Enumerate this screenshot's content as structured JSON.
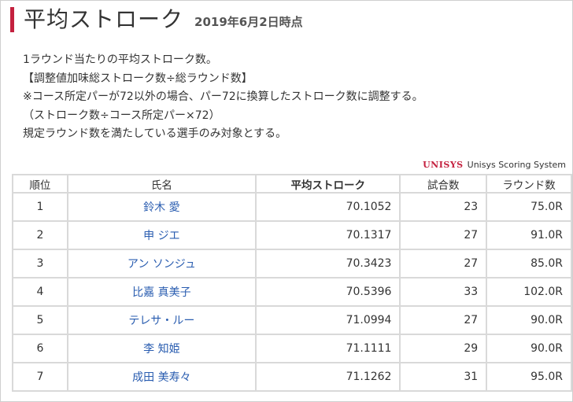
{
  "header": {
    "title": "平均ストローク",
    "date": "2019年6月2日時点"
  },
  "description": [
    "1ラウンド当たりの平均ストローク数。",
    "【調整値加味総ストローク数÷総ラウンド数】",
    "※コース所定パーが72以外の場合、パー72に換算したストローク数に調整する。",
    "（ストローク数÷コース所定パー×72）",
    "規定ラウンド数を満たしている選手のみ対象とする。"
  ],
  "logo": {
    "mark": "UNISYS",
    "text": "Unisys Scoring System"
  },
  "table": {
    "headers": {
      "rank": "順位",
      "name": "氏名",
      "avg": "平均ストローク",
      "games": "試合数",
      "rounds": "ラウンド数"
    },
    "rows": [
      {
        "rank": "1",
        "name": "鈴木 愛",
        "avg": "70.1052",
        "games": "23",
        "rounds": "75.0R"
      },
      {
        "rank": "2",
        "name": "申 ジエ",
        "avg": "70.1317",
        "games": "27",
        "rounds": "91.0R"
      },
      {
        "rank": "3",
        "name": "アン ソンジュ",
        "avg": "70.3423",
        "games": "27",
        "rounds": "85.0R"
      },
      {
        "rank": "4",
        "name": "比嘉 真美子",
        "avg": "70.5396",
        "games": "33",
        "rounds": "102.0R"
      },
      {
        "rank": "5",
        "name": "テレサ・ルー",
        "avg": "71.0994",
        "games": "27",
        "rounds": "90.0R"
      },
      {
        "rank": "6",
        "name": "李 知姫",
        "avg": "71.1111",
        "games": "29",
        "rounds": "90.0R"
      },
      {
        "rank": "7",
        "name": "成田 美寿々",
        "avg": "71.1262",
        "games": "31",
        "rounds": "95.0R"
      }
    ]
  },
  "colors": {
    "accent": "#c4213f",
    "link": "#2a5db0",
    "border": "#d9d9d9"
  }
}
